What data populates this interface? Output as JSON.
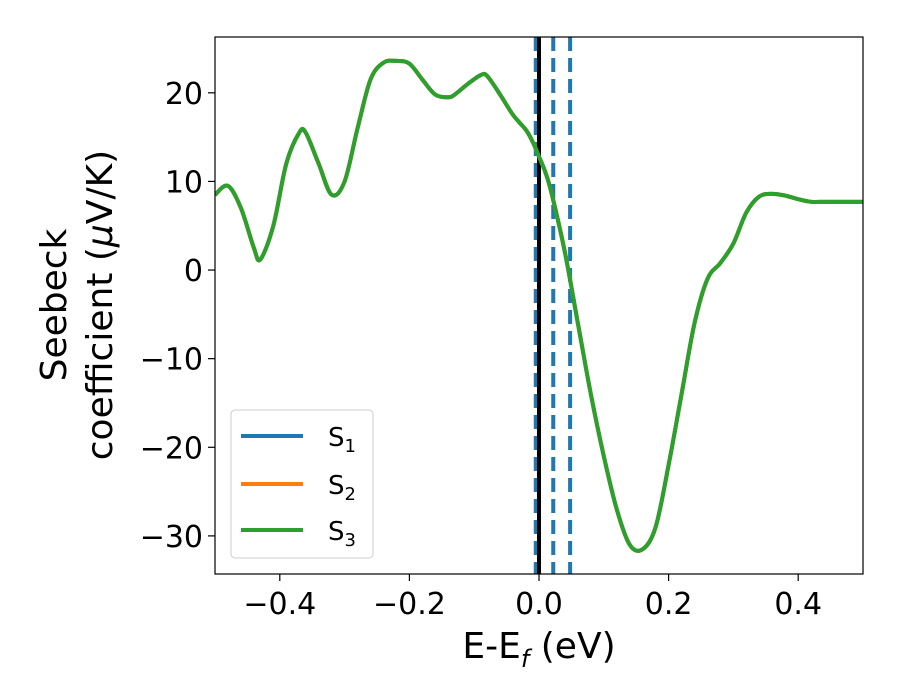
{
  "chart_data": {
    "type": "line",
    "xlabel": "E-E",
    "xlabel_sub": "f",
    "xlabel_unit": " (eV)",
    "ylabel_line1": "Seebeck",
    "ylabel_line2_pre": "coefficient  (",
    "ylabel_mu": "μ",
    "ylabel_line2_post": "V/K)",
    "xlim": [
      -0.5,
      0.5
    ],
    "ylim": [
      -34.3,
      26.3
    ],
    "xticks": [
      -0.4,
      -0.2,
      0.0,
      0.2,
      0.4
    ],
    "xtick_labels": [
      "−0.4",
      "−0.2",
      "0.0",
      "0.2",
      "0.4"
    ],
    "yticks": [
      -30,
      -20,
      -10,
      0,
      10,
      20
    ],
    "ytick_labels": [
      "−30",
      "−20",
      "−10",
      "0",
      "10",
      "20"
    ],
    "grid": false,
    "legend_position": "lower-left",
    "x": [
      -0.5,
      -0.48,
      -0.46,
      -0.44,
      -0.43,
      -0.41,
      -0.39,
      -0.37,
      -0.36,
      -0.34,
      -0.32,
      -0.3,
      -0.28,
      -0.26,
      -0.24,
      -0.22,
      -0.2,
      -0.18,
      -0.16,
      -0.14,
      -0.13,
      -0.11,
      -0.09,
      -0.08,
      -0.06,
      -0.04,
      -0.02,
      -0.01,
      0.0,
      0.01,
      0.02,
      0.04,
      0.06,
      0.08,
      0.1,
      0.12,
      0.14,
      0.16,
      0.18,
      0.2,
      0.22,
      0.24,
      0.26,
      0.28,
      0.3,
      0.32,
      0.34,
      0.36,
      0.38,
      0.4,
      0.42,
      0.44,
      0.46,
      0.48,
      0.5
    ],
    "series": [
      {
        "name": "S",
        "sub": "1",
        "color": "#1f77b4",
        "values": [
          8.5,
          9.5,
          7.0,
          2.5,
          1.2,
          5.0,
          12.0,
          15.5,
          15.5,
          12.0,
          8.5,
          10.0,
          16.0,
          21.5,
          23.4,
          23.6,
          23.3,
          21.5,
          19.8,
          19.5,
          19.8,
          21.0,
          22.0,
          21.9,
          19.8,
          17.5,
          15.8,
          14.5,
          12.8,
          11.0,
          8.5,
          2.0,
          -6.0,
          -14.0,
          -21.0,
          -27.0,
          -31.0,
          -31.5,
          -29.0,
          -22.0,
          -14.0,
          -6.0,
          -1.0,
          0.8,
          3.0,
          6.5,
          8.3,
          8.6,
          8.4,
          8.0,
          7.7,
          7.7,
          7.7,
          7.7,
          7.7
        ]
      },
      {
        "name": "S",
        "sub": "2",
        "color": "#ff7f0e",
        "values": [
          8.5,
          9.5,
          7.0,
          2.5,
          1.2,
          5.0,
          12.0,
          15.5,
          15.5,
          12.0,
          8.5,
          10.0,
          16.0,
          21.5,
          23.4,
          23.6,
          23.3,
          21.5,
          19.8,
          19.5,
          19.8,
          21.0,
          22.0,
          21.9,
          19.8,
          17.5,
          15.8,
          14.5,
          12.8,
          11.0,
          8.5,
          2.0,
          -6.0,
          -14.0,
          -21.0,
          -27.0,
          -31.0,
          -31.5,
          -29.0,
          -22.0,
          -14.0,
          -6.0,
          -1.0,
          0.8,
          3.0,
          6.5,
          8.3,
          8.6,
          8.4,
          8.0,
          7.7,
          7.7,
          7.7,
          7.7,
          7.7
        ]
      },
      {
        "name": "S",
        "sub": "3",
        "color": "#2ca02c",
        "values": [
          8.5,
          9.5,
          7.0,
          2.5,
          1.2,
          5.0,
          12.0,
          15.5,
          15.5,
          12.0,
          8.5,
          10.0,
          16.0,
          21.5,
          23.4,
          23.6,
          23.3,
          21.5,
          19.8,
          19.5,
          19.8,
          21.0,
          22.0,
          21.9,
          19.8,
          17.5,
          15.8,
          14.5,
          12.8,
          11.0,
          8.5,
          2.0,
          -6.0,
          -14.0,
          -21.0,
          -27.0,
          -31.0,
          -31.5,
          -29.0,
          -22.0,
          -14.0,
          -6.0,
          -1.0,
          0.8,
          3.0,
          6.5,
          8.3,
          8.6,
          8.4,
          8.0,
          7.7,
          7.7,
          7.7,
          7.7,
          7.7
        ]
      }
    ],
    "vlines_dashed": [
      -0.005,
      0.022,
      0.048
    ],
    "vlines_dashed_color": "#1f77b4",
    "vline_solid": 0.0,
    "vline_solid_color": "#000000"
  }
}
